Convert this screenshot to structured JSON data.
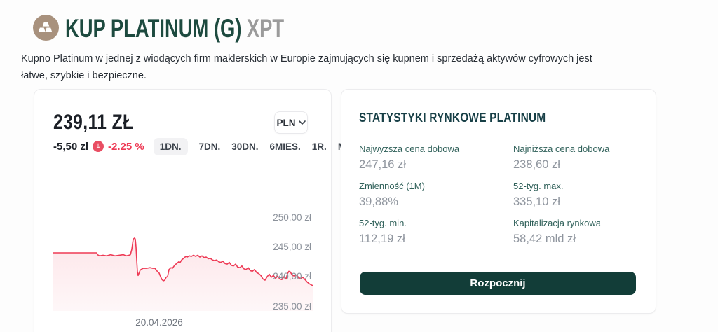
{
  "header": {
    "icon": "gold-bars-icon",
    "title": "KUP PLATINUM (G)",
    "ticker": "XPT",
    "subtitle": "Kupno Platinum w jednej z wiodących firm maklerskich w Europie zajmujących się kupnem i sprzedażą aktywów cyfrowych jest łatwe, szybkie i bezpieczne."
  },
  "price_card": {
    "price": "239,11 ZŁ",
    "change_amount": "-5,50 zł",
    "change_percent": "-2.25 %",
    "change_direction": "down",
    "change_arrow": "↓",
    "currency": "PLN",
    "tabs": [
      {
        "label": "1DN.",
        "active": true
      },
      {
        "label": "7DN.",
        "active": false
      },
      {
        "label": "30DN.",
        "active": false
      },
      {
        "label": "6MIES.",
        "active": false
      },
      {
        "label": "1R.",
        "active": false
      },
      {
        "label": "Maks",
        "active": false
      }
    ]
  },
  "chart_data": {
    "type": "area",
    "title": "",
    "xlabel": "20.04.2026",
    "ylabel": "",
    "y_ticks": [
      "250,00 zł",
      "245,00 zł",
      "240,00 zł",
      "235,00 zł"
    ],
    "y_tick_values": [
      250,
      245,
      240,
      235
    ],
    "ylim": [
      234.3,
      253.2
    ],
    "legend": "none",
    "grid": "off",
    "line_color": "#ee3a55",
    "fill_color": "#ee3a55",
    "points": [
      [
        0,
        244.1
      ],
      [
        20,
        244.1
      ],
      [
        40,
        244.1
      ],
      [
        55,
        244.1
      ],
      [
        62,
        244.1
      ],
      [
        63,
        243.8
      ],
      [
        66,
        243.6
      ],
      [
        71,
        243.7
      ],
      [
        76,
        243.6
      ],
      [
        82,
        243.8
      ],
      [
        88,
        243.6
      ],
      [
        94,
        243.7
      ],
      [
        100,
        243.8
      ],
      [
        104,
        243.6
      ],
      [
        108,
        243.7
      ],
      [
        110,
        243.8
      ],
      [
        112,
        244.7
      ],
      [
        114,
        246.4
      ],
      [
        116,
        246.6
      ],
      [
        117,
        246.4
      ],
      [
        118,
        245.1
      ],
      [
        119,
        242.9
      ],
      [
        120,
        240.9
      ],
      [
        121,
        240.3
      ],
      [
        124,
        241.2
      ],
      [
        128,
        241.5
      ],
      [
        133,
        241.5
      ],
      [
        138,
        241.6
      ],
      [
        142,
        241.5
      ],
      [
        145,
        241.5
      ],
      [
        147,
        241.2
      ],
      [
        149,
        240.9
      ],
      [
        151,
        240.7
      ],
      [
        153,
        240.1
      ],
      [
        155,
        239.6
      ],
      [
        157,
        239.4
      ],
      [
        159,
        239.5
      ],
      [
        161,
        240.0
      ],
      [
        163,
        240.1
      ],
      [
        165,
        241.3
      ],
      [
        168,
        241.6
      ],
      [
        170,
        241.5
      ],
      [
        173,
        242.0
      ],
      [
        176,
        242.3
      ],
      [
        179,
        242.6
      ],
      [
        181,
        242.5
      ],
      [
        183,
        242.9
      ],
      [
        186,
        243.2
      ],
      [
        189,
        243.5
      ],
      [
        191,
        243.4
      ],
      [
        194,
        243.6
      ],
      [
        197,
        243.5
      ],
      [
        200,
        243.7
      ],
      [
        203,
        243.5
      ],
      [
        206,
        243.7
      ],
      [
        209,
        243.4
      ],
      [
        212,
        243.6
      ],
      [
        215,
        243.3
      ],
      [
        218,
        243.4
      ],
      [
        221,
        243.1
      ],
      [
        224,
        243.2
      ],
      [
        227,
        242.9
      ],
      [
        230,
        242.8
      ],
      [
        233,
        242.9
      ],
      [
        236,
        242.6
      ],
      [
        239,
        242.5
      ],
      [
        242,
        242.7
      ],
      [
        245,
        242.3
      ],
      [
        248,
        242.2
      ],
      [
        251,
        242.5
      ],
      [
        254,
        242.0
      ],
      [
        257,
        241.9
      ],
      [
        260,
        242.2
      ],
      [
        263,
        241.7
      ],
      [
        266,
        241.6
      ],
      [
        269,
        241.9
      ],
      [
        272,
        241.4
      ],
      [
        275,
        241.3
      ],
      [
        278,
        241.6
      ],
      [
        281,
        241.1
      ],
      [
        284,
        241.0
      ],
      [
        287,
        241.3
      ],
      [
        290,
        240.8
      ],
      [
        293,
        240.6
      ],
      [
        296,
        240.3
      ],
      [
        299,
        239.7
      ],
      [
        302,
        239.5
      ],
      [
        305,
        240.1
      ],
      [
        308,
        240.5
      ],
      [
        311,
        240.0
      ],
      [
        314,
        240.3
      ],
      [
        317,
        239.8
      ],
      [
        320,
        240.2
      ],
      [
        323,
        239.7
      ],
      [
        326,
        239.6
      ],
      [
        329,
        240.1
      ],
      [
        332,
        239.7
      ],
      [
        334,
        240.6
      ],
      [
        336,
        241.0
      ],
      [
        338,
        240.9
      ],
      [
        341,
        240.3
      ],
      [
        344,
        240.2
      ],
      [
        347,
        240.4
      ],
      [
        350,
        239.9
      ],
      [
        353,
        239.8
      ],
      [
        356,
        240.0
      ],
      [
        359,
        239.6
      ],
      [
        362,
        239.2
      ],
      [
        365,
        238.9
      ],
      [
        368,
        238.7
      ],
      [
        370,
        238.6
      ]
    ]
  },
  "stats_card": {
    "heading": "STATYSTYKI RYNKOWE PLATINUM",
    "stats": [
      {
        "label": "Najwyższa cena dobowa",
        "value": "247,16 zł"
      },
      {
        "label": "Najniższa cena dobowa",
        "value": "238,60 zł"
      },
      {
        "label": "Zmienność (1M)",
        "value": "39,88%"
      },
      {
        "label": "52-tyg. max.",
        "value": "335,10 zł"
      },
      {
        "label": "52-tyg. min.",
        "value": "112,19 zł"
      },
      {
        "label": "Kapitalizacja rynkowa",
        "value": "58,42 mld zł"
      }
    ],
    "cta_label": "Rozpocznij"
  },
  "colors": {
    "title_green": "#1d4a3f",
    "ticker_gray": "#9b9b9b",
    "heading_teal": "#173f46",
    "stat_label_teal": "#2f6059",
    "negative_red": "#ee3a55",
    "badge_red": "#e94e63",
    "button_bg": "#123d38",
    "icon_circle_tan": "#a8917d",
    "card_border": "#ececee"
  }
}
